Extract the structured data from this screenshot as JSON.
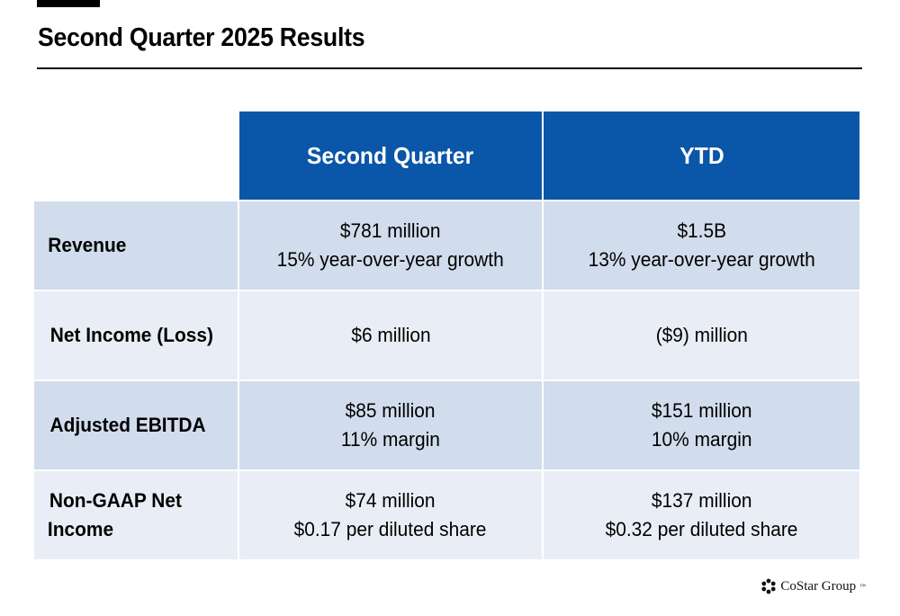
{
  "title": "Second Quarter 2025 Results",
  "columns": {
    "quarter": "Second Quarter",
    "ytd": "YTD"
  },
  "rows": [
    {
      "label": "Revenue",
      "quarter": [
        "$781 million",
        "15% year-over-year growth"
      ],
      "ytd": [
        "$1.5B",
        "13% year-over-year growth"
      ]
    },
    {
      "label": "Net Income (Loss)",
      "quarter": [
        "$6 million"
      ],
      "ytd": [
        "($9) million"
      ]
    },
    {
      "label": "Adjusted EBITDA",
      "quarter": [
        "$85 million",
        "11% margin"
      ],
      "ytd": [
        "$151 million",
        "10% margin"
      ]
    },
    {
      "label_lines": [
        "Non-GAAP Net",
        "Income"
      ],
      "quarter": [
        "$74 million",
        "$0.17 per diluted share"
      ],
      "ytd": [
        "$137 million",
        "$0.32 per diluted share"
      ]
    }
  ],
  "logo": {
    "text": "CoStar Group",
    "mark": "™",
    "icon": "costar-logo-icon"
  },
  "colors": {
    "header_blue": "#0a56a8",
    "row_dark": "#d1dcec",
    "row_light": "#e9eef6"
  }
}
